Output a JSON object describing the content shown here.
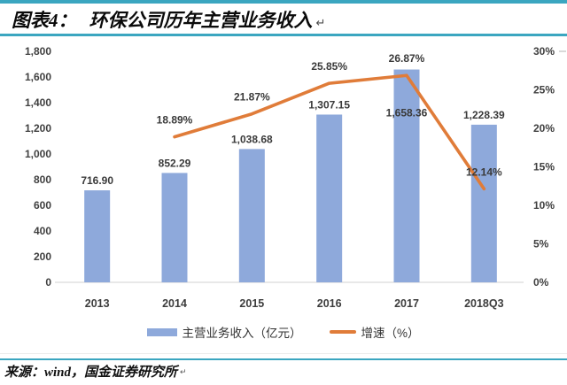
{
  "header": {
    "title_label": "图表4：",
    "title_text": "环保公司历年主营业务收入",
    "return_mark": "↵"
  },
  "footer": {
    "source_text": "来源：wind，国金证券研究所",
    "trailing_mark": "↵"
  },
  "colors": {
    "bar": "#8EA9DB",
    "line": "#E07C39",
    "rule": "#3BA6C0",
    "axis_text": "#404040",
    "axis_line": "#D9D9D9",
    "label_text": "#3A3A3A"
  },
  "chart_data": {
    "type": "bar+line",
    "title": "环保公司历年主营业务收入",
    "categories": [
      "2013",
      "2014",
      "2015",
      "2016",
      "2017",
      "2018Q3"
    ],
    "series": [
      {
        "name": "主营业务收入（亿元）",
        "type": "bar",
        "axis": "left",
        "values": [
          716.9,
          852.29,
          1038.68,
          1307.15,
          1658.36,
          1228.39
        ],
        "labels": [
          "716.90",
          "852.29",
          "1,038.68",
          "1,307.15",
          "1,658.36",
          "1,228.39"
        ]
      },
      {
        "name": "增速（%）",
        "type": "line",
        "axis": "right",
        "values": [
          null,
          18.89,
          21.87,
          25.85,
          26.87,
          12.14
        ],
        "labels": [
          null,
          "18.89%",
          "21.87%",
          "25.85%",
          "26.87%",
          "12.14%"
        ]
      }
    ],
    "left_axis": {
      "min": 0,
      "max": 1800,
      "step": 200,
      "ticks": [
        "0",
        "200",
        "400",
        "600",
        "800",
        "1,000",
        "1,200",
        "1,400",
        "1,600",
        "1,800"
      ]
    },
    "right_axis": {
      "min": 0,
      "max": 30,
      "step": 5,
      "ticks": [
        "0%",
        "5%",
        "10%",
        "15%",
        "20%",
        "25%",
        "30%"
      ]
    },
    "grid": false,
    "legend_position": "bottom"
  }
}
